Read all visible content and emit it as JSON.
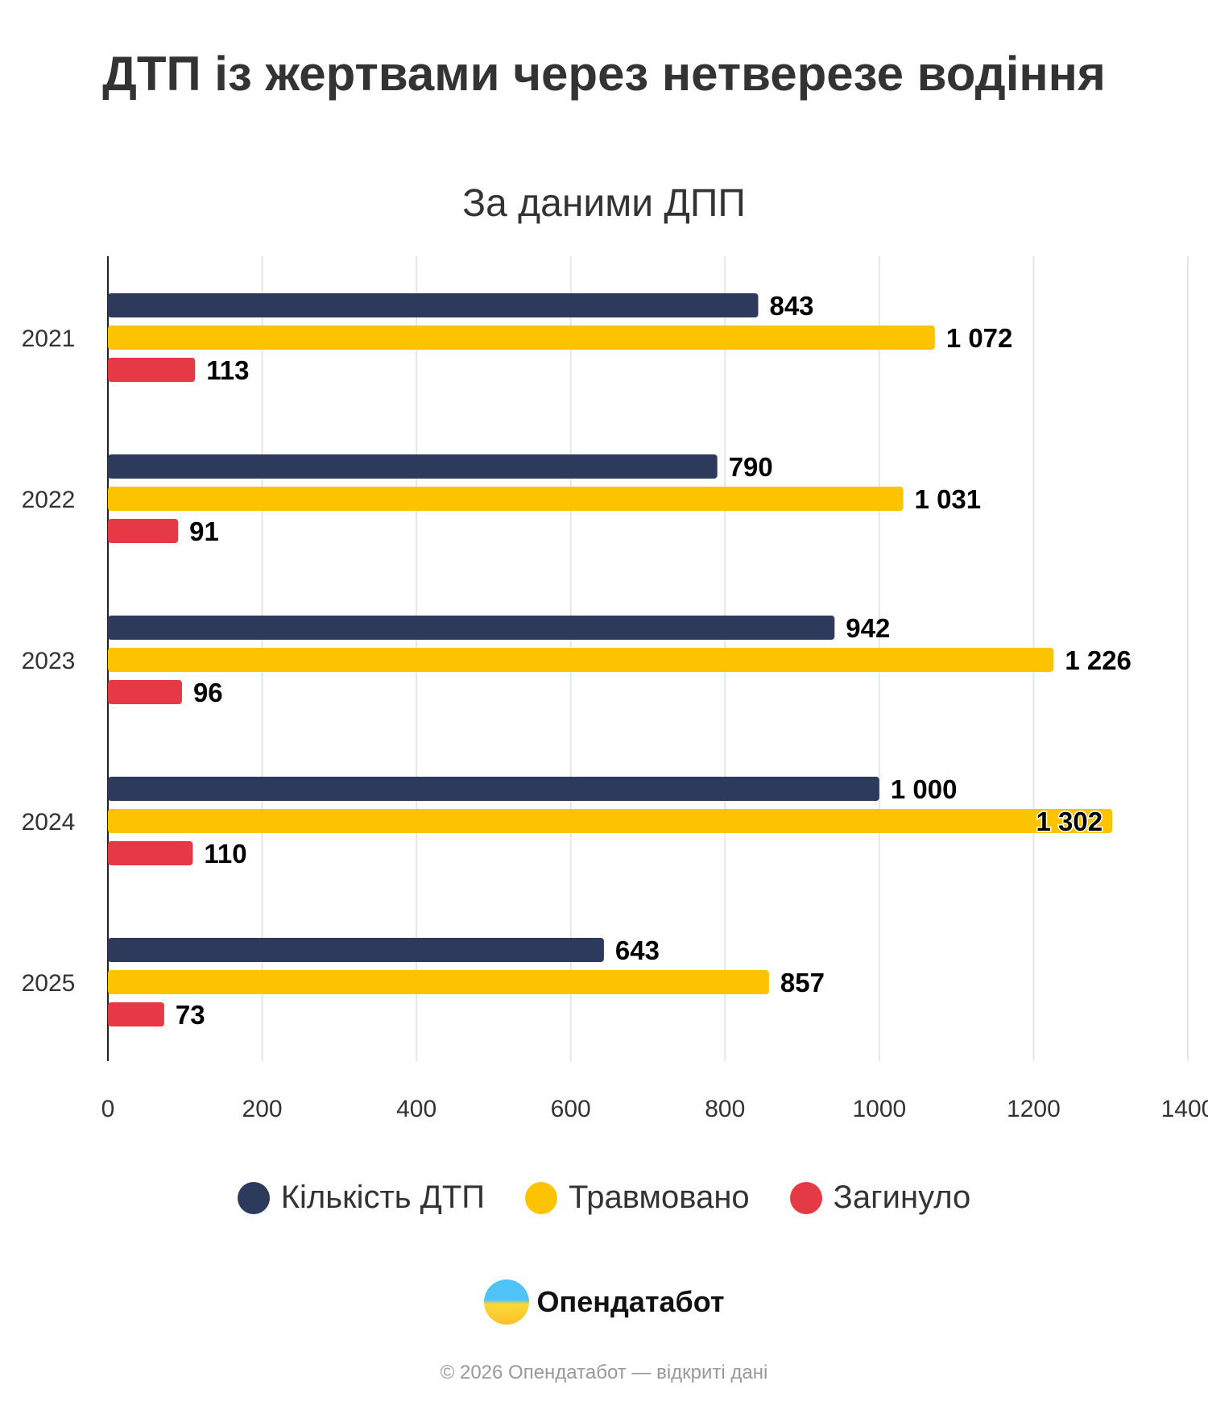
{
  "chart_data": {
    "type": "bar",
    "orientation": "horizontal",
    "title": "ДТП із жертвами через нетверезе водіння",
    "subtitle": "За даними ДПП",
    "categories": [
      "2021",
      "2022",
      "2023",
      "2024",
      "2025"
    ],
    "series": [
      {
        "name": "Кількість ДТП",
        "color": "#2e3a5c",
        "values": [
          843,
          790,
          942,
          1000,
          643
        ],
        "labels": [
          "843",
          "790",
          "942",
          "1 000",
          "643"
        ]
      },
      {
        "name": "Травмовано",
        "color": "#fdc300",
        "values": [
          1072,
          1031,
          1226,
          1302,
          857
        ],
        "labels": [
          "1 072",
          "1 031",
          "1 226",
          "1 302",
          "857"
        ]
      },
      {
        "name": "Загинуло",
        "color": "#e63946",
        "values": [
          113,
          91,
          96,
          110,
          73
        ],
        "labels": [
          "113",
          "91",
          "96",
          "110",
          "73"
        ]
      }
    ],
    "xlim": [
      0,
      1400
    ],
    "xticks": [
      "0",
      "200",
      "400",
      "600",
      "800",
      "1000",
      "1200",
      "1400"
    ],
    "grid": true,
    "legend": "bottom"
  },
  "brand": {
    "name": "Опендатабот"
  },
  "footer": "© 2026 Опендатабот — відкриті дані"
}
